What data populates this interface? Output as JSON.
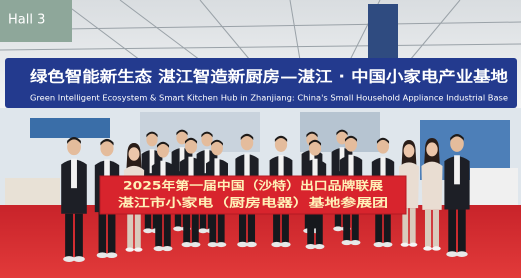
{
  "hall_sign": {
    "text": "Hall 3"
  },
  "top_banner": {
    "chinese": "绿色智能新生态  湛江智造新厨房—湛江 · 中国小家电产业基地",
    "english": "Green Intelligent Ecosystem & Smart Kitchen Hub in Zhanjiang: China's Small Household Appliance Industrial Base"
  },
  "group_banner": {
    "line1": "2025年第一届中国（沙特）出口品牌联展",
    "line2": "湛江市小家电（厨房电器）基地参展团"
  }
}
